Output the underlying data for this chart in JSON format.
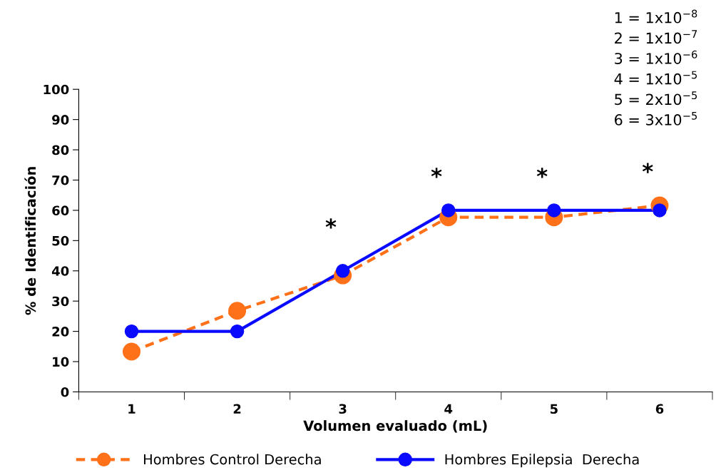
{
  "chart_data": {
    "type": "line",
    "xlabel": "Volumen evaluado (mL)",
    "ylabel": "% de Identificación",
    "categories": [
      "1",
      "2",
      "3",
      "4",
      "5",
      "6"
    ],
    "series": [
      {
        "name": "Hombres Control Derecha",
        "color": "#ff7119",
        "values": [
          13.3,
          26.8,
          38.5,
          57.7,
          57.7,
          61.6
        ],
        "line_style": "dashed"
      },
      {
        "name": "Hombres Epilepsia  Derecha",
        "color": "#0a0aff",
        "values": [
          20,
          20,
          40,
          60,
          60,
          60
        ],
        "line_style": "solid"
      }
    ],
    "ylim": [
      0,
      100
    ],
    "yticks": [
      0,
      10,
      20,
      30,
      40,
      50,
      60,
      70,
      80,
      90,
      100
    ],
    "marker": "circle",
    "legend": "bottom",
    "grid": false,
    "annotations": [
      "*",
      "*",
      "*",
      "*",
      "1 = 1x10$^{−8}$",
      "2 = 1x10$^{−7}$",
      "3 = 1x10$^{−6}$",
      "4 = 1x10$^{−5}$",
      "5 = 2x10$^{−5}$",
      "6 = 3x10$^{−5}$"
    ]
  }
}
